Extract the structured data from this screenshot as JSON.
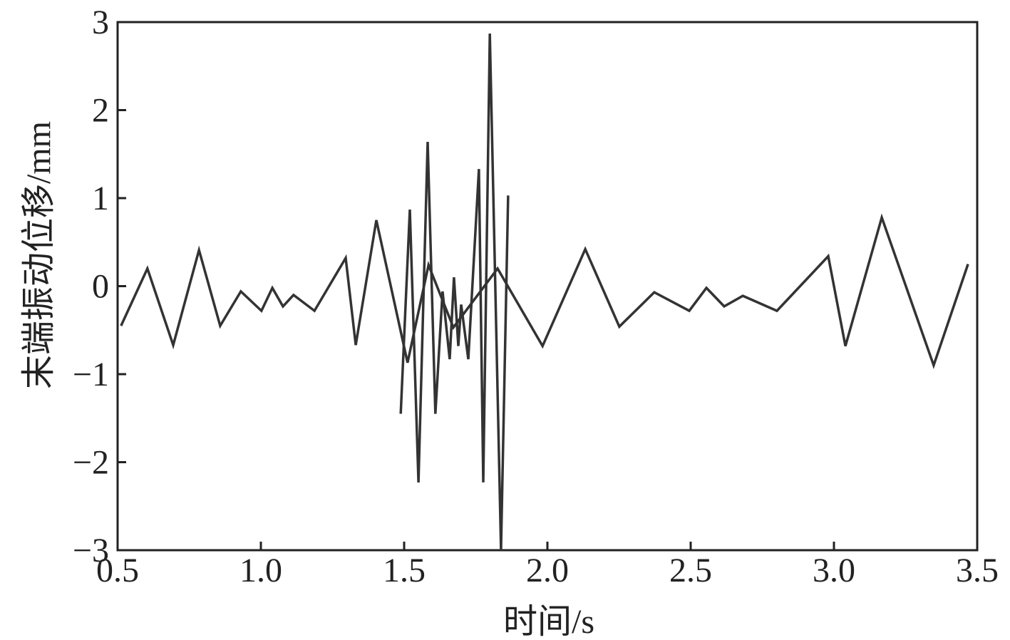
{
  "chart_data": {
    "type": "line",
    "x_label": "时间/s",
    "y_label": "末端振动位移/mm",
    "xlim": [
      0.5,
      3.5
    ],
    "ylim": [
      -3,
      3
    ],
    "xticks": [
      0.5,
      {
        "value": 1,
        "label": "1.0"
      },
      1.5,
      {
        "value": 2,
        "label": "2.0"
      },
      2.5,
      {
        "value": 3,
        "label": "3.0"
      },
      3.5
    ],
    "yticks": [
      {
        "value": -3,
        "label": "−3"
      },
      {
        "value": -2,
        "label": "−2"
      },
      {
        "value": -1,
        "label": "−1"
      },
      0,
      1,
      2,
      3
    ],
    "series": [
      {
        "color": "#333333",
        "x": [
          0.512,
          0.604,
          0.694,
          0.784,
          0.858,
          0.93,
          1.002,
          1.04,
          1.077,
          1.114,
          1.187,
          1.296,
          1.331,
          1.403,
          1.512,
          1.585,
          1.672,
          1.826,
          1.983,
          2.132,
          2.251,
          2.373,
          2.495,
          2.555,
          2.617,
          2.682,
          2.801,
          2.98,
          3.04,
          3.167,
          3.348,
          3.468
        ],
        "values": [
          -0.45,
          0.2,
          -0.67,
          0.41,
          -0.45,
          -0.06,
          -0.28,
          -0.02,
          -0.23,
          -0.1,
          -0.28,
          0.32,
          -0.67,
          0.75,
          -0.87,
          0.24,
          -0.47,
          0.2,
          -0.68,
          0.42,
          -0.46,
          -0.07,
          -0.28,
          -0.02,
          -0.23,
          -0.11,
          -0.28,
          0.34,
          -0.68,
          0.78,
          -0.9,
          0.25
        ]
      },
      {
        "color": "#333333",
        "x": [
          1.488,
          1.52,
          1.55,
          1.582,
          1.609,
          1.634,
          1.659,
          1.674,
          1.689,
          1.699,
          1.724,
          1.761,
          1.776,
          1.799,
          1.838,
          1.863
        ],
        "values": [
          -1.45,
          0.87,
          -2.23,
          1.64,
          -1.45,
          -0.06,
          -0.83,
          0.1,
          -0.68,
          -0.21,
          -0.83,
          1.33,
          -2.23,
          2.87,
          -3.0,
          1.03
        ]
      }
    ]
  }
}
